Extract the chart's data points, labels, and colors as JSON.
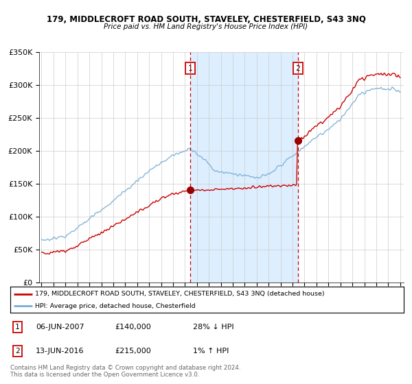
{
  "title1": "179, MIDDLECROFT ROAD SOUTH, STAVELEY, CHESTERFIELD, S43 3NQ",
  "title2": "Price paid vs. HM Land Registry's House Price Index (HPI)",
  "ylim": [
    0,
    350000
  ],
  "yticks": [
    0,
    50000,
    100000,
    150000,
    200000,
    250000,
    300000,
    350000
  ],
  "ytick_labels": [
    "£0",
    "£50K",
    "£100K",
    "£150K",
    "£200K",
    "£250K",
    "£300K",
    "£350K"
  ],
  "xlim_start": 1994.8,
  "xlim_end": 2025.3,
  "marker1_date": 2007.44,
  "marker1_value": 140000,
  "marker2_date": 2016.45,
  "marker2_value": 215000,
  "property_line_color": "#cc0000",
  "hpi_line_color": "#7aadd4",
  "shaded_region_color": "#ddeeff",
  "grid_color": "#cccccc",
  "legend_text1": "179, MIDDLECROFT ROAD SOUTH, STAVELEY, CHESTERFIELD, S43 3NQ (detached house)",
  "legend_text2": "HPI: Average price, detached house, Chesterfield",
  "footer1": "Contains HM Land Registry data © Crown copyright and database right 2024.",
  "footer2": "This data is licensed under the Open Government Licence v3.0."
}
